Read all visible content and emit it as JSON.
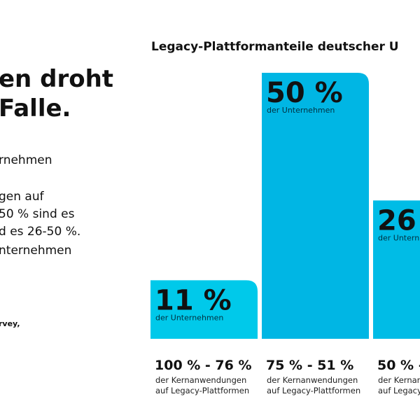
{
  "intro": {
    "headline": [
      "en droht",
      "Falle."
    ],
    "body": [
      "rnehmen",
      "gen auf",
      "50 % sind es",
      "d es 26-50 %.",
      "nternehmen"
    ],
    "source": "rvey,"
  },
  "chart_data": {
    "type": "bar",
    "title": "Legacy-Plattformanteile deutscher U",
    "categories": [
      "100 % - 76 %",
      "75 % - 51 %",
      "50 % -"
    ],
    "category_notes": [
      [
        "der Kernanwendungen",
        "auf Legacy-Plattformen"
      ],
      [
        "der Kernanwendungen",
        "auf Legacy-Plattformen"
      ],
      [
        "der Kernan",
        "auf Legacy"
      ]
    ],
    "values": [
      11,
      50,
      26
    ],
    "value_labels": [
      "11 %",
      "50 %",
      "26"
    ],
    "value_notes": [
      "der Unternehmen",
      "der Unternehmen",
      "der Untern"
    ],
    "colors": [
      "#00c9ea",
      "#00b6e4",
      "#00bce6"
    ]
  }
}
